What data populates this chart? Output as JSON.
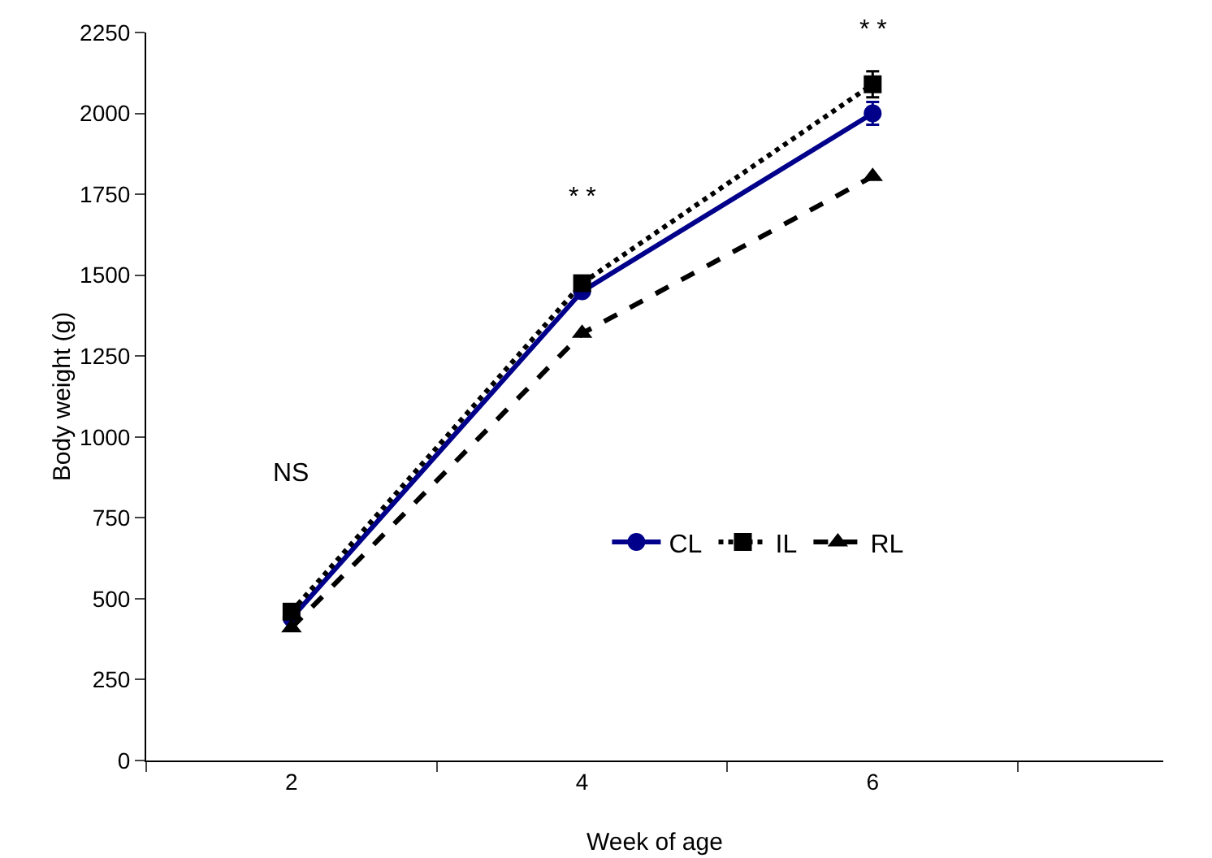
{
  "chart_data": {
    "type": "line",
    "xlabel": "Week of age",
    "ylabel": "Body weight (g)",
    "categories": [
      "2",
      "4",
      "6"
    ],
    "series": [
      {
        "name": "CL",
        "color": "#00008b",
        "marker": "circle",
        "line_style": "solid",
        "values": [
          440,
          1450,
          2000
        ],
        "errors": [
          null,
          null,
          35
        ]
      },
      {
        "name": "IL",
        "color": "#000000",
        "marker": "square",
        "line_style": "dotted",
        "values": [
          460,
          1475,
          2090
        ],
        "errors": [
          null,
          null,
          40
        ]
      },
      {
        "name": "RL",
        "color": "#000000",
        "marker": "triangle",
        "line_style": "dashed",
        "values": [
          410,
          1320,
          1805
        ]
      }
    ],
    "ylim": [
      0,
      2250
    ],
    "yticks": [
      0,
      250,
      500,
      750,
      1000,
      1250,
      1500,
      1750,
      2000,
      2250
    ],
    "grid": false,
    "legend": "right",
    "annotations": [
      "NS",
      "* *",
      "* *"
    ]
  }
}
